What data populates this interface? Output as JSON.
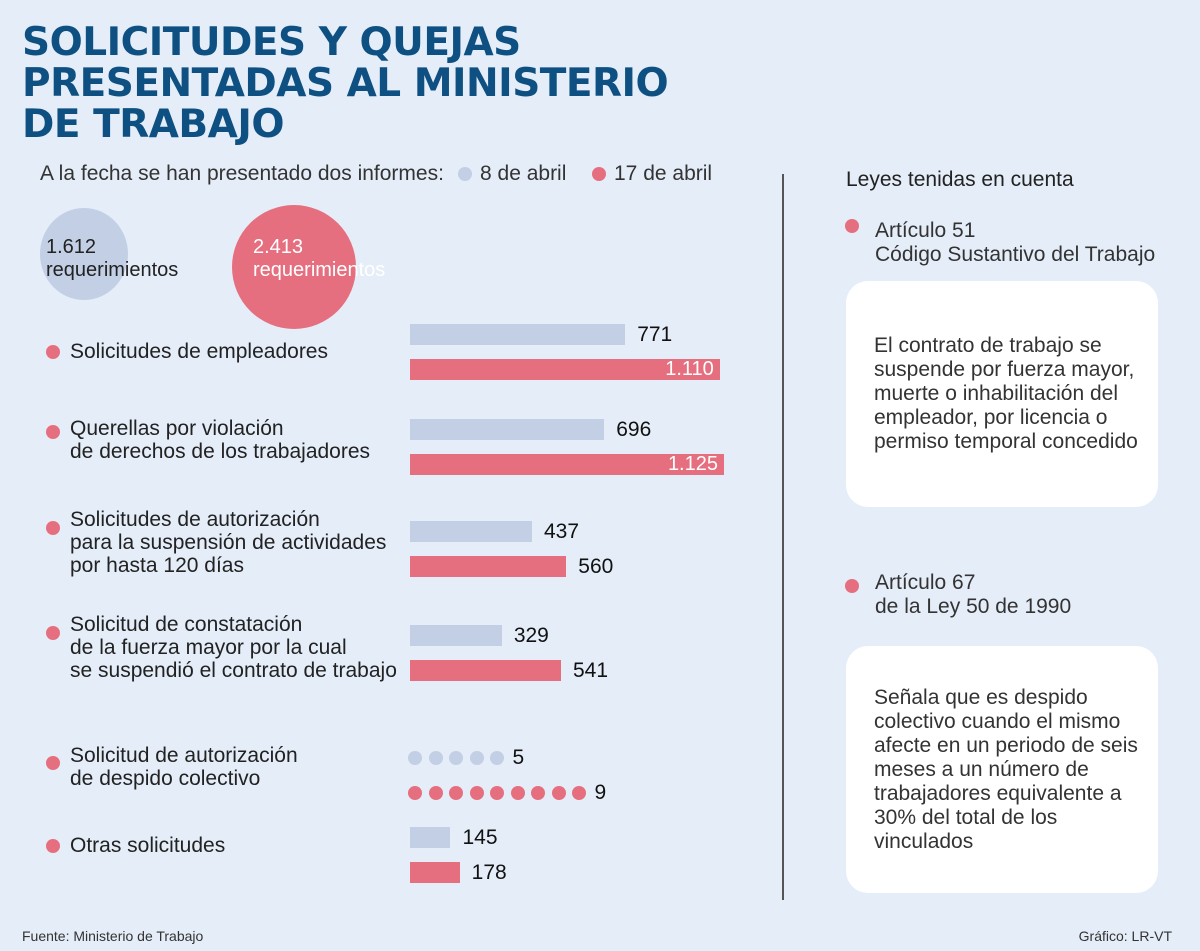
{
  "title": "SOLICITUDES Y QUEJAS PRESENTADAS AL MINISTERIO DE TRABAJO",
  "intro": "A la fecha se han presentado dos informes:",
  "legend": {
    "first": "8 de abril",
    "second": "17 de abril"
  },
  "colors": {
    "first": "#c2cfe5",
    "second": "#e66f7f",
    "title": "#0d5081",
    "background": "#e4edf8"
  },
  "totals": {
    "first": {
      "value": "1.612",
      "unit": "requerimientos"
    },
    "second": {
      "value": "2.413",
      "unit": "requerimientos"
    }
  },
  "chart_data": {
    "type": "bar",
    "orientation": "horizontal",
    "categories": [
      "Solicitudes de empleadores",
      "Querellas por violación\nde derechos de los trabajadores",
      "Solicitudes de autorización\npara la suspensión de actividades\npor hasta 120 días",
      "Solicitud de constatación\nde la fuerza mayor por la cual\nse suspendió el contrato de trabajo",
      "Solicitud de autorización\nde despido colectivo",
      "Otras solicitudes"
    ],
    "series": [
      {
        "name": "8 de abril",
        "values": [
          771,
          696,
          437,
          329,
          5,
          145
        ],
        "labels": [
          "771",
          "696",
          "437",
          "329",
          "5",
          "145"
        ]
      },
      {
        "name": "17 de abril",
        "values": [
          1110,
          1125,
          560,
          541,
          9,
          178
        ],
        "labels": [
          "1.110",
          "1.125",
          "560",
          "541",
          "9",
          "178"
        ]
      }
    ]
  },
  "laws": {
    "title": "Leyes tenidas en cuenta",
    "items": [
      {
        "heading": "Artículo 51\nCódigo Sustantivo del Trabajo",
        "text": "El contrato de trabajo se suspende por fuerza mayor, muerte o inhabilitación del empleador, por licencia o permiso temporal concedido"
      },
      {
        "heading": "Artículo 67\nde la Ley 50 de 1990",
        "text": "Señala que es despido colectivo cuando el mismo afecte en un periodo de seis meses a un número de trabajadores equivalente a 30% del total de los vinculados"
      }
    ]
  },
  "footer": {
    "source": "Fuente: Ministerio de Trabajo",
    "credit": "Gráfico: LR-VT"
  }
}
